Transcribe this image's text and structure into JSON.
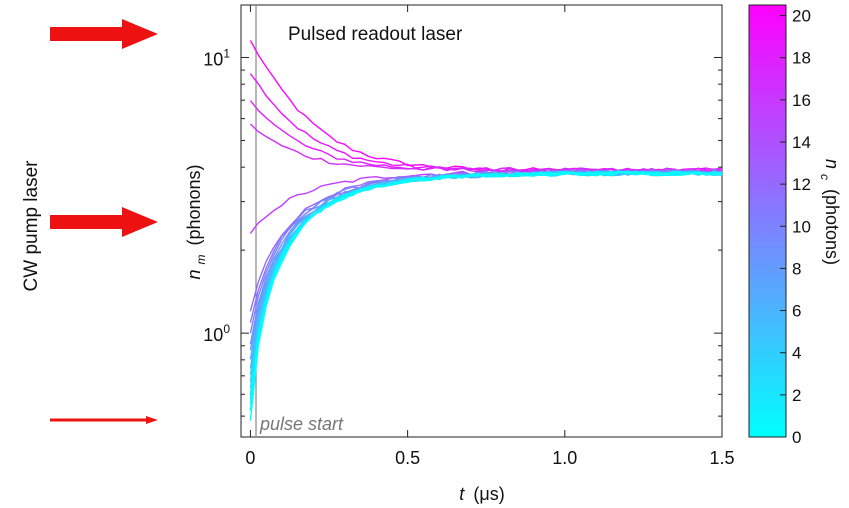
{
  "chart_data": {
    "type": "line",
    "title": "",
    "xlabel_symbol": "t",
    "xlabel_unit": "(μs)",
    "ylabel_symbol": "n",
    "ylabel_sub": "m",
    "ylabel_unit": "(phonons)",
    "xlim": [
      -0.03,
      1.5
    ],
    "ylim": [
      0.42,
      15.5
    ],
    "yscale": "log",
    "grid": false,
    "x_ticks": [
      {
        "value": 0,
        "label": "0"
      },
      {
        "value": 0.5,
        "label": "0.5"
      },
      {
        "value": 1.0,
        "label": "1.0"
      },
      {
        "value": 1.5,
        "label": "1.5"
      }
    ],
    "y_ticks": [
      {
        "value": 1,
        "base": "10",
        "exp": "0"
      },
      {
        "value": 10,
        "base": "10",
        "exp": "1"
      }
    ],
    "annotations": {
      "top": "Pulsed readout laser",
      "bottom": "pulse start"
    },
    "side_label": "CW pump laser",
    "colorbar": {
      "label_symbol": "n",
      "label_sub": "c",
      "label_unit": "(photons)",
      "min": 0,
      "max": 20.5,
      "ticks": [
        0,
        2,
        4,
        6,
        8,
        10,
        12,
        14,
        16,
        18,
        20
      ],
      "color_low": "#00ffff",
      "color_high": "#ff00ff"
    },
    "arrows": [
      {
        "strength": "thick",
        "color": "#ee1111"
      },
      {
        "strength": "thick",
        "color": "#ee1111"
      },
      {
        "strength": "thin",
        "color": "#ee1111"
      }
    ],
    "series": [
      {
        "nc": 0,
        "n0": 0.48,
        "n_end": 3.8
      },
      {
        "nc": 0.5,
        "n0": 0.52,
        "n_end": 3.8
      },
      {
        "nc": 1,
        "n0": 0.55,
        "n_end": 3.8
      },
      {
        "nc": 1.5,
        "n0": 0.58,
        "n_end": 3.8
      },
      {
        "nc": 2,
        "n0": 0.6,
        "n_end": 3.8
      },
      {
        "nc": 3,
        "n0": 0.63,
        "n_end": 3.8
      },
      {
        "nc": 4,
        "n0": 0.67,
        "n_end": 3.8
      },
      {
        "nc": 5,
        "n0": 0.7,
        "n_end": 3.8
      },
      {
        "nc": 6,
        "n0": 0.75,
        "n_end": 3.8
      },
      {
        "nc": 7,
        "n0": 0.8,
        "n_end": 3.8
      },
      {
        "nc": 8,
        "n0": 0.86,
        "n_end": 3.8
      },
      {
        "nc": 9,
        "n0": 0.92,
        "n_end": 3.85
      },
      {
        "nc": 10,
        "n0": 1.0,
        "n_end": 3.85
      },
      {
        "nc": 11,
        "n0": 1.1,
        "n_end": 3.85
      },
      {
        "nc": 12,
        "n0": 1.2,
        "n_end": 3.85
      },
      {
        "nc": 15.5,
        "n0": 2.3,
        "n_end": 3.85
      },
      {
        "nc": 17,
        "n0": 5.7,
        "n_end": 3.9
      },
      {
        "nc": 18,
        "n0": 7.0,
        "n_end": 3.9
      },
      {
        "nc": 19,
        "n0": 8.8,
        "n_end": 3.9
      },
      {
        "nc": 20,
        "n0": 11.5,
        "n_end": 3.9
      }
    ]
  }
}
